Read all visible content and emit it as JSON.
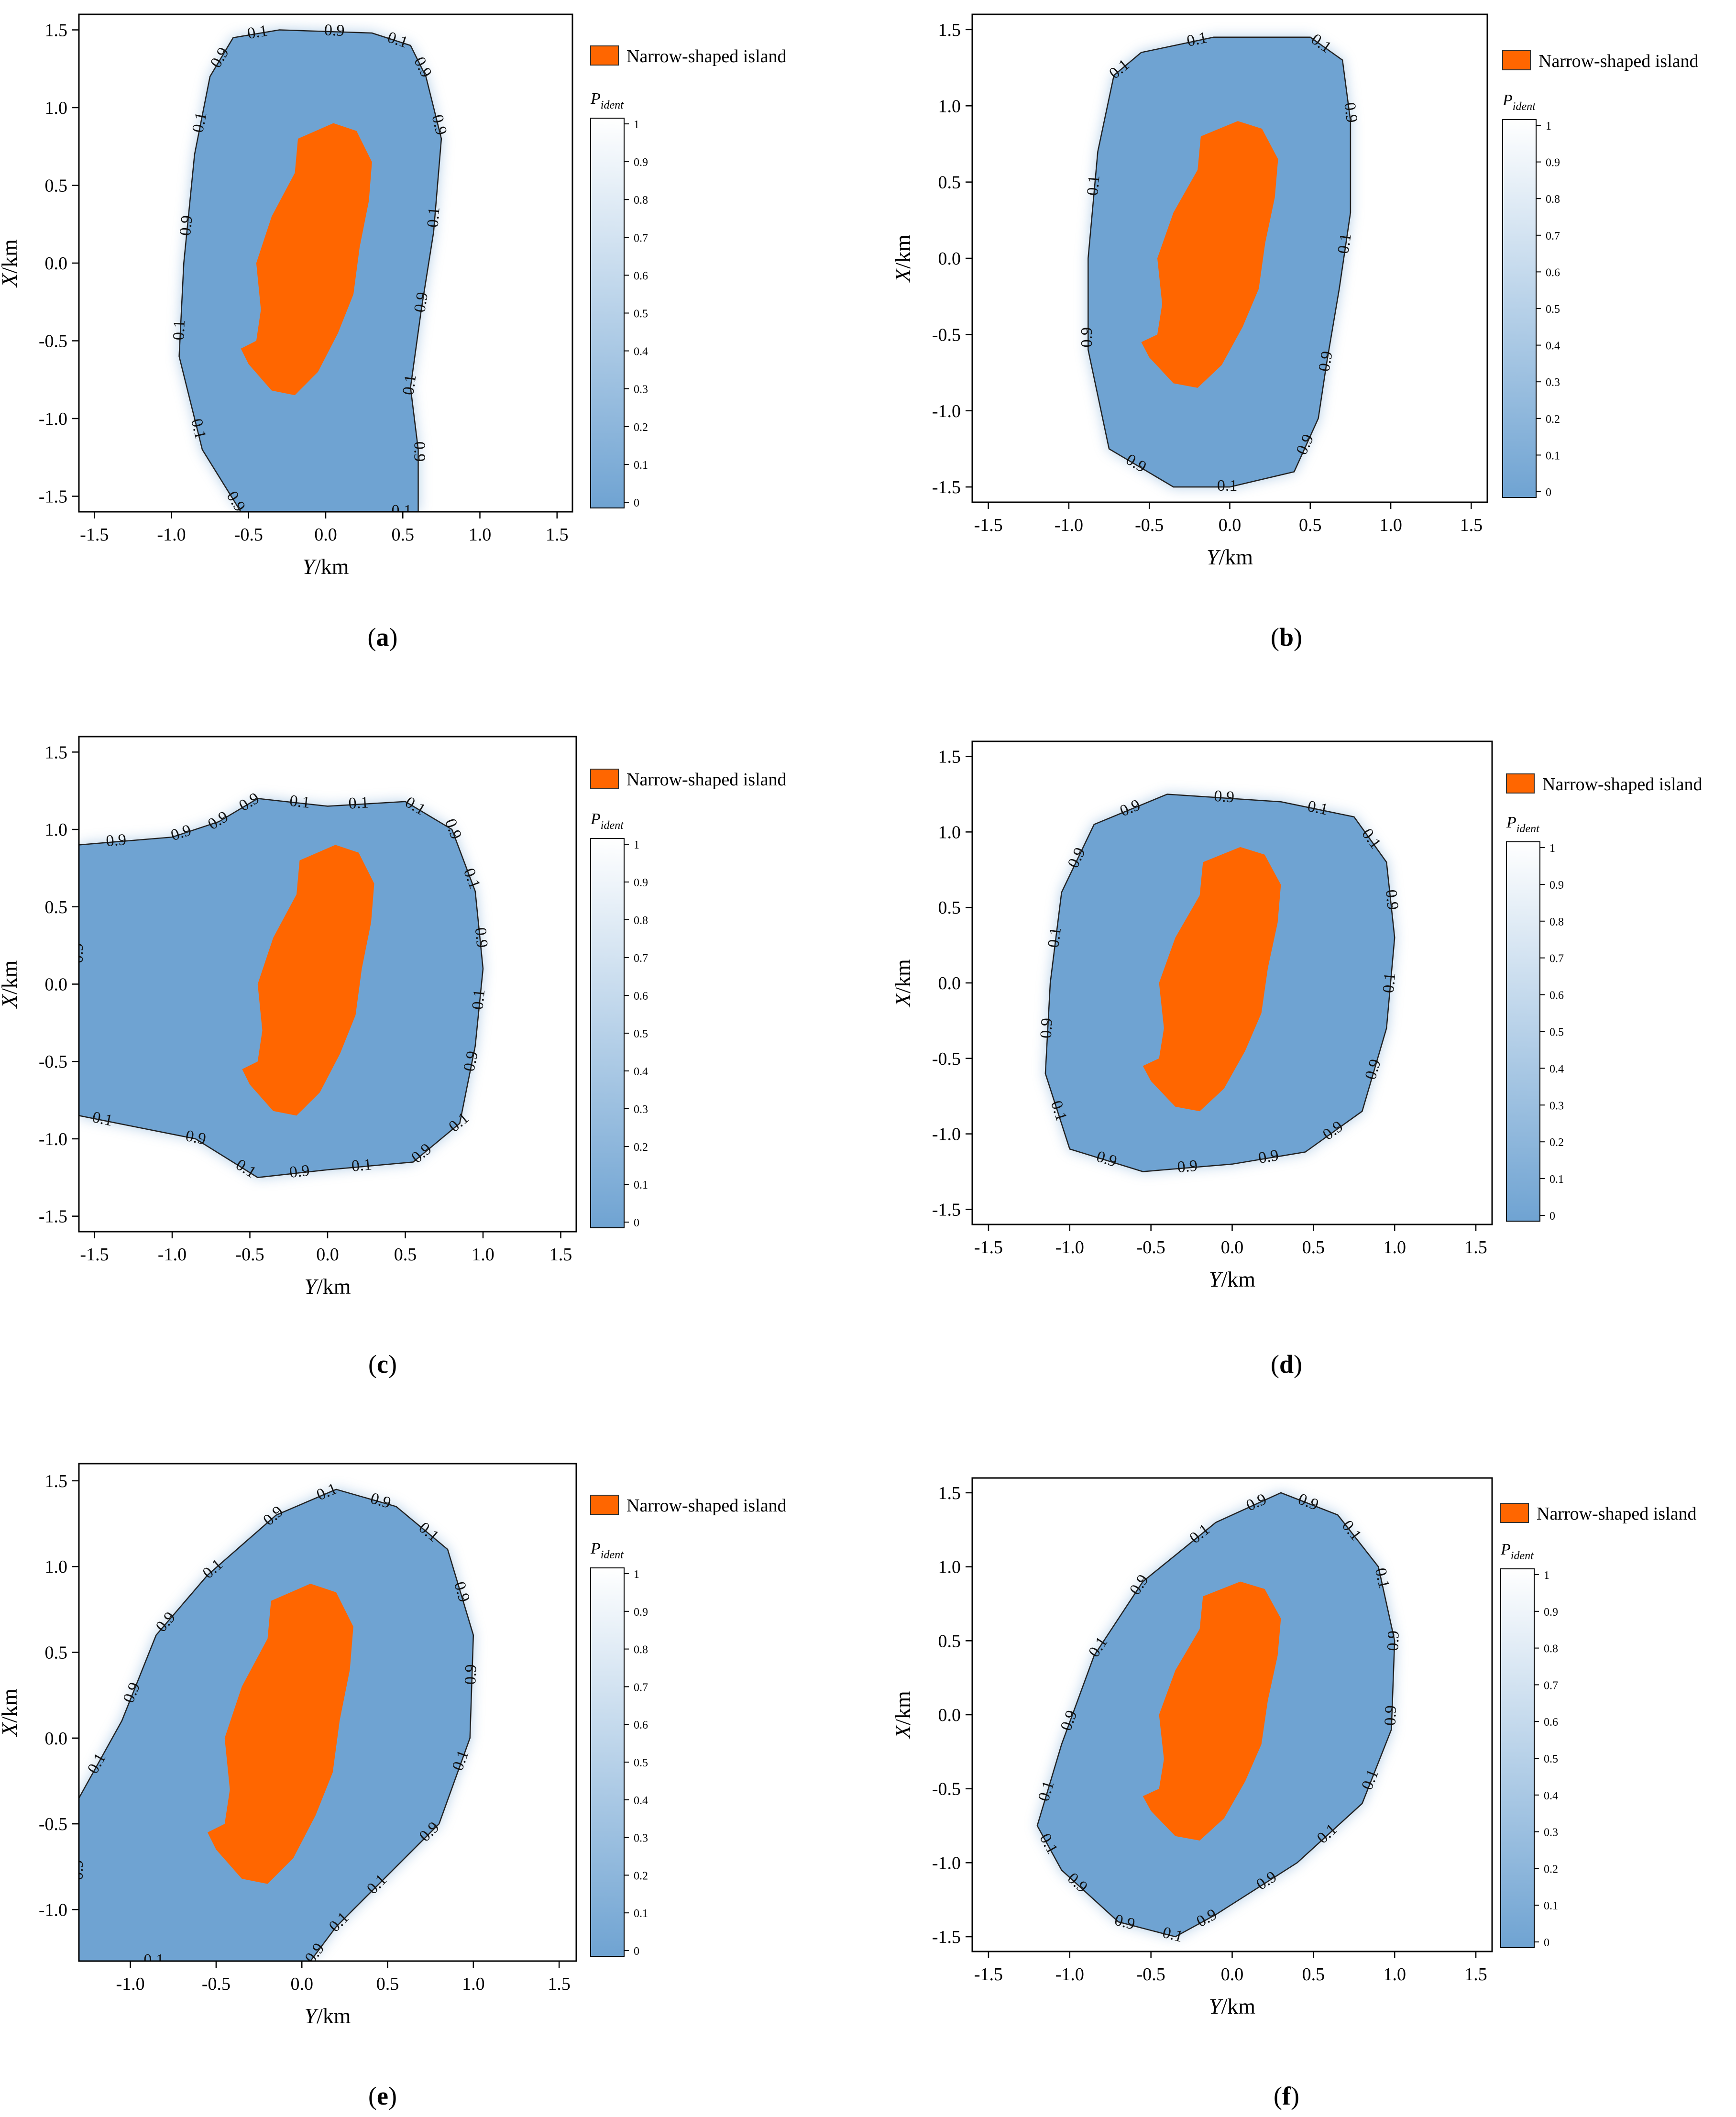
{
  "colors": {
    "land": "#FF6600",
    "background": "#6FA3D2",
    "low": "#6FA3D2",
    "high": "#FFFFFF",
    "contour": "#222222",
    "frame": "#000000"
  },
  "chart_data": [
    {
      "type": "contour",
      "panel_label": "a",
      "xlabel": "Y/km",
      "ylabel": "X/km",
      "x_ticks": [
        "-1.5",
        "-1.0",
        "-0.5",
        "0.0",
        "0.5",
        "1.0",
        "1.5"
      ],
      "y_ticks": [
        "1.5",
        "1.0",
        "0.5",
        "0.0",
        "-0.5",
        "-1.0",
        "-1.5"
      ],
      "xlim": [
        -1.6,
        1.6
      ],
      "ylim": [
        -1.6,
        1.6
      ],
      "legend_label": "Narrow-shaped island",
      "colorbar_title": "P",
      "colorbar_subscript": "ident",
      "colorbar_ticks": [
        "1",
        "0.9",
        "0.8",
        "0.7",
        "0.6",
        "0.5",
        "0.4",
        "0.3",
        "0.2",
        "0.1",
        "0"
      ],
      "contour_labels": [
        "0.1",
        "0.9",
        "0.1",
        "0.9",
        "0.9",
        "0.1",
        "0.9",
        "0.1",
        "0.9",
        "0.1",
        "0.9",
        "0.1",
        "0.1",
        "0.9",
        "0.1",
        "0.9"
      ],
      "region": [
        [
          -0.6,
          1.45
        ],
        [
          -0.3,
          1.5
        ],
        [
          0.3,
          1.48
        ],
        [
          0.55,
          1.4
        ],
        [
          0.65,
          1.2
        ],
        [
          0.75,
          0.8
        ],
        [
          0.7,
          0.2
        ],
        [
          0.62,
          -0.3
        ],
        [
          0.55,
          -0.8
        ],
        [
          0.6,
          -1.2
        ],
        [
          0.6,
          -1.6
        ],
        [
          -0.55,
          -1.6
        ],
        [
          -0.8,
          -1.2
        ],
        [
          -0.95,
          -0.6
        ],
        [
          -0.92,
          0.0
        ],
        [
          -0.85,
          0.7
        ],
        [
          -0.75,
          1.2
        ]
      ]
    },
    {
      "type": "contour",
      "panel_label": "b",
      "xlabel": "Y/km",
      "ylabel": "X/km",
      "x_ticks": [
        "-1.5",
        "-1.0",
        "-0.5",
        "0.0",
        "0.5",
        "1.0",
        "1.5"
      ],
      "y_ticks": [
        "1.5",
        "1.0",
        "0.5",
        "0.0",
        "-0.5",
        "-1.0",
        "-1.5"
      ],
      "xlim": [
        -1.6,
        1.6
      ],
      "ylim": [
        -1.6,
        1.6
      ],
      "legend_label": "Narrow-shaped island",
      "colorbar_title": "P",
      "colorbar_subscript": "ident",
      "colorbar_ticks": [
        "1",
        "0.9",
        "0.8",
        "0.7",
        "0.6",
        "0.5",
        "0.4",
        "0.3",
        "0.2",
        "0.1",
        "0"
      ],
      "contour_labels": [
        "0.1",
        "0.1",
        "0.9",
        "0.1",
        "0.9",
        "0.9",
        "0.1",
        "0.9",
        "0.9",
        "0.1",
        "0.1"
      ],
      "region": [
        [
          -0.55,
          1.35
        ],
        [
          -0.1,
          1.45
        ],
        [
          0.5,
          1.45
        ],
        [
          0.7,
          1.3
        ],
        [
          0.75,
          0.9
        ],
        [
          0.75,
          0.3
        ],
        [
          0.68,
          -0.2
        ],
        [
          0.6,
          -0.7
        ],
        [
          0.55,
          -1.05
        ],
        [
          0.4,
          -1.4
        ],
        [
          0.0,
          -1.5
        ],
        [
          -0.35,
          -1.5
        ],
        [
          -0.75,
          -1.25
        ],
        [
          -0.88,
          -0.6
        ],
        [
          -0.88,
          0.0
        ],
        [
          -0.82,
          0.7
        ],
        [
          -0.72,
          1.2
        ]
      ]
    },
    {
      "type": "contour",
      "panel_label": "c",
      "xlabel": "Y/km",
      "ylabel": "X/km",
      "x_ticks": [
        "-1.5",
        "-1.0",
        "-0.5",
        "0.0",
        "0.5",
        "1.0",
        "1.5"
      ],
      "y_ticks": [
        "1.5",
        "1.0",
        "0.5",
        "0.0",
        "-0.5",
        "-1.0",
        "-1.5"
      ],
      "xlim": [
        -1.6,
        1.6
      ],
      "ylim": [
        -1.6,
        1.6
      ],
      "legend_label": "Narrow-shaped island",
      "colorbar_title": "P",
      "colorbar_subscript": "ident",
      "colorbar_ticks": [
        "1",
        "0.9",
        "0.8",
        "0.7",
        "0.6",
        "0.5",
        "0.4",
        "0.3",
        "0.2",
        "0.1",
        "0"
      ],
      "contour_labels": [
        "0.9",
        "0.9",
        "0.9",
        "0.9",
        "0.1",
        "0.1",
        "0.1",
        "0.9",
        "0.1",
        "0.9",
        "0.1",
        "0.9",
        "0.1",
        "0.9",
        "0.1",
        "0.9",
        "0.1",
        "0.9",
        "0.1",
        "0.9"
      ],
      "region": [
        [
          -1.6,
          0.9
        ],
        [
          -1.0,
          0.95
        ],
        [
          -0.7,
          1.05
        ],
        [
          -0.45,
          1.2
        ],
        [
          0.0,
          1.15
        ],
        [
          0.5,
          1.18
        ],
        [
          0.8,
          1.0
        ],
        [
          0.95,
          0.6
        ],
        [
          1.0,
          0.1
        ],
        [
          0.95,
          -0.4
        ],
        [
          0.85,
          -0.9
        ],
        [
          0.55,
          -1.15
        ],
        [
          0.0,
          -1.2
        ],
        [
          -0.45,
          -1.25
        ],
        [
          -0.85,
          -1.0
        ],
        [
          -1.6,
          -0.85
        ]
      ]
    },
    {
      "type": "contour",
      "panel_label": "d",
      "xlabel": "Y/km",
      "ylabel": "X/km",
      "x_ticks": [
        "-1.5",
        "-1.0",
        "-0.5",
        "0.0",
        "0.5",
        "1.0",
        "1.5"
      ],
      "y_ticks": [
        "1.5",
        "1.0",
        "0.5",
        "0.0",
        "-0.5",
        "-1.0",
        "-1.5"
      ],
      "xlim": [
        -1.6,
        1.6
      ],
      "ylim": [
        -1.6,
        1.6
      ],
      "legend_label": "Narrow-shaped island",
      "colorbar_title": "P",
      "colorbar_subscript": "ident",
      "colorbar_ticks": [
        "1",
        "0.9",
        "0.8",
        "0.7",
        "0.6",
        "0.5",
        "0.4",
        "0.3",
        "0.2",
        "0.1",
        "0"
      ],
      "contour_labels": [
        "0.9",
        "0.9",
        "0.1",
        "0.1",
        "0.9",
        "0.1",
        "0.9",
        "0.9",
        "0.9",
        "0.9",
        "0.9",
        "0.1",
        "0.9",
        "0.1",
        "0.9"
      ],
      "region": [
        [
          -0.85,
          1.05
        ],
        [
          -0.4,
          1.25
        ],
        [
          0.3,
          1.2
        ],
        [
          0.75,
          1.1
        ],
        [
          0.95,
          0.8
        ],
        [
          1.0,
          0.3
        ],
        [
          0.95,
          -0.3
        ],
        [
          0.8,
          -0.85
        ],
        [
          0.45,
          -1.12
        ],
        [
          0.0,
          -1.2
        ],
        [
          -0.55,
          -1.25
        ],
        [
          -1.0,
          -1.1
        ],
        [
          -1.15,
          -0.6
        ],
        [
          -1.12,
          0.0
        ],
        [
          -1.05,
          0.6
        ]
      ]
    },
    {
      "type": "contour",
      "panel_label": "e",
      "xlabel": "Y/km",
      "ylabel": "X/km",
      "x_ticks": [
        "-1.0",
        "-0.5",
        "0.0",
        "0.5",
        "1.0",
        "1.5"
      ],
      "y_ticks": [
        "1.5",
        "1.0",
        "0.5",
        "0.0",
        "-0.5",
        "-1.0"
      ],
      "xlim": [
        -1.3,
        1.6
      ],
      "ylim": [
        -1.3,
        1.6
      ],
      "legend_label": "Narrow-shaped island",
      "colorbar_title": "P",
      "colorbar_subscript": "ident",
      "colorbar_ticks": [
        "1",
        "0.9",
        "0.8",
        "0.7",
        "0.6",
        "0.5",
        "0.4",
        "0.3",
        "0.2",
        "0.1",
        "0"
      ],
      "contour_labels": [
        "0.1",
        "0.9",
        "0.9",
        "0.1",
        "0.9",
        "0.1",
        "0.9",
        "0.1",
        "0.9",
        "0.9",
        "0.1",
        "0.9",
        "0.1",
        "0.1",
        "0.9",
        "0.1",
        "0.9"
      ],
      "region": [
        [
          -1.3,
          -0.35
        ],
        [
          -1.05,
          0.1
        ],
        [
          -0.85,
          0.6
        ],
        [
          -0.55,
          0.95
        ],
        [
          -0.15,
          1.3
        ],
        [
          0.2,
          1.45
        ],
        [
          0.55,
          1.35
        ],
        [
          0.85,
          1.1
        ],
        [
          1.0,
          0.6
        ],
        [
          0.98,
          0.0
        ],
        [
          0.8,
          -0.5
        ],
        [
          0.45,
          -0.85
        ],
        [
          0.2,
          -1.1
        ],
        [
          0.05,
          -1.3
        ],
        [
          -1.3,
          -1.3
        ]
      ]
    },
    {
      "type": "contour",
      "panel_label": "f",
      "xlabel": "Y/km",
      "ylabel": "X/km",
      "x_ticks": [
        "-1.5",
        "-1.0",
        "-0.5",
        "0.0",
        "0.5",
        "1.0",
        "1.5"
      ],
      "y_ticks": [
        "1.5",
        "1.0",
        "0.5",
        "0.0",
        "-0.5",
        "-1.0",
        "-1.5"
      ],
      "xlim": [
        -1.6,
        1.6
      ],
      "ylim": [
        -1.6,
        1.6
      ],
      "legend_label": "Narrow-shaped island",
      "colorbar_title": "P",
      "colorbar_subscript": "ident",
      "colorbar_ticks": [
        "1",
        "0.9",
        "0.8",
        "0.7",
        "0.6",
        "0.5",
        "0.4",
        "0.3",
        "0.2",
        "0.1",
        "0"
      ],
      "contour_labels": [
        "0.1",
        "0.9",
        "0.1",
        "0.9",
        "0.1",
        "0.9",
        "0.9",
        "0.1",
        "0.1",
        "0.9",
        "0.9",
        "0.1",
        "0.1",
        "0.9",
        "0.9",
        "0.1",
        "0.9",
        "0.9",
        "0.1"
      ],
      "region": [
        [
          -1.2,
          -0.75
        ],
        [
          -1.05,
          -0.2
        ],
        [
          -0.85,
          0.4
        ],
        [
          -0.55,
          0.9
        ],
        [
          -0.1,
          1.3
        ],
        [
          0.3,
          1.5
        ],
        [
          0.65,
          1.35
        ],
        [
          0.9,
          1.0
        ],
        [
          1.0,
          0.5
        ],
        [
          0.98,
          -0.1
        ],
        [
          0.8,
          -0.6
        ],
        [
          0.4,
          -1.0
        ],
        [
          -0.1,
          -1.35
        ],
        [
          -0.35,
          -1.5
        ],
        [
          -0.7,
          -1.4
        ],
        [
          -1.05,
          -1.05
        ]
      ]
    }
  ],
  "island": [
    [
      0.05,
      0.9
    ],
    [
      0.2,
      0.85
    ],
    [
      0.3,
      0.65
    ],
    [
      0.28,
      0.4
    ],
    [
      0.22,
      0.1
    ],
    [
      0.18,
      -0.2
    ],
    [
      0.08,
      -0.45
    ],
    [
      -0.05,
      -0.7
    ],
    [
      -0.2,
      -0.85
    ],
    [
      -0.35,
      -0.82
    ],
    [
      -0.5,
      -0.65
    ],
    [
      -0.55,
      -0.55
    ],
    [
      -0.45,
      -0.5
    ],
    [
      -0.42,
      -0.3
    ],
    [
      -0.45,
      0.0
    ],
    [
      -0.35,
      0.3
    ],
    [
      -0.2,
      0.58
    ],
    [
      -0.18,
      0.8
    ]
  ]
}
